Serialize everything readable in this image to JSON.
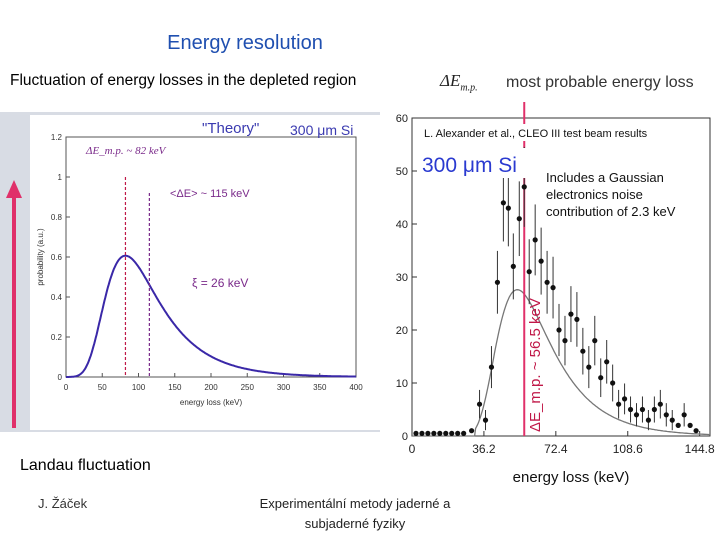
{
  "slide": {
    "title": "Energy resolution",
    "subtitle": "Fluctuation of energy losses in the depleted region",
    "header_symbol": "ΔE",
    "header_symbol_sub": "m.p.",
    "header_desc": "most probable energy loss",
    "landau_label": "Landau fluctuation",
    "author": "J. Žáček",
    "footer_center_line1": "Experimentální metody jaderné a",
    "footer_center_line2": "subjaderné fyziky",
    "accent_color": "#1f4fb0",
    "arrow_color": "#e0306a"
  },
  "chart_data": [
    {
      "type": "line",
      "title": "\"Theory\"",
      "title_suffix": "300 μm Si",
      "xlabel": "energy loss (keV)",
      "ylabel": "probability (a.u.)",
      "xlim": [
        0,
        400
      ],
      "ylim": [
        0,
        1.2
      ],
      "xticks": [
        0,
        50,
        100,
        150,
        200,
        250,
        300,
        350,
        400
      ],
      "yticks": [
        0,
        0.2,
        0.4,
        0.6,
        0.8,
        1,
        1.2
      ],
      "curve": "landau",
      "peak_x": 82,
      "mean_x": 115,
      "xi": 26,
      "annotations": {
        "mp": "ΔE_m.p. ~ 82 keV",
        "mean": "<ΔE> ~ 115 keV",
        "xi": "ξ = 26 keV"
      },
      "colors": {
        "curve": "#3a28a8",
        "mp_line": "#c01848",
        "mean_line": "#7a2a8a",
        "title": "#3a3ab0",
        "text": "#7a2a8a"
      }
    },
    {
      "type": "scatter",
      "title": "L. Alexander et al., CLEO III test beam results",
      "label_big": "300 μm Si",
      "note": [
        "Includes a Gaussian",
        "electronics noise",
        "contribution of 2.3 keV"
      ],
      "vline_label": "ΔE_m.p. ~ 56.5 keV",
      "vline_x": 56.5,
      "xlabel": "energy loss (keV)",
      "xlim": [
        0,
        150
      ],
      "ylim": [
        0,
        60
      ],
      "xticks": [
        0,
        36.2,
        72.4,
        108.6,
        144.8
      ],
      "yticks": [
        0,
        10,
        20,
        30,
        40,
        50,
        60
      ],
      "points": [
        [
          2,
          0.5
        ],
        [
          5,
          0.5
        ],
        [
          8,
          0.5
        ],
        [
          11,
          0.5
        ],
        [
          14,
          0.5
        ],
        [
          17,
          0.5
        ],
        [
          20,
          0.5
        ],
        [
          23,
          0.5
        ],
        [
          26,
          0.5
        ],
        [
          30,
          1
        ],
        [
          34,
          6
        ],
        [
          37,
          3
        ],
        [
          40,
          13
        ],
        [
          43,
          29
        ],
        [
          46,
          44
        ],
        [
          48.5,
          43
        ],
        [
          51,
          32
        ],
        [
          54,
          41
        ],
        [
          56.5,
          47
        ],
        [
          59,
          31
        ],
        [
          62,
          37
        ],
        [
          65,
          33
        ],
        [
          68,
          29
        ],
        [
          71,
          28
        ],
        [
          74,
          20
        ],
        [
          77,
          18
        ],
        [
          80,
          23
        ],
        [
          83,
          22
        ],
        [
          86,
          16
        ],
        [
          89,
          13
        ],
        [
          92,
          18
        ],
        [
          95,
          11
        ],
        [
          98,
          14
        ],
        [
          101,
          10
        ],
        [
          104,
          6
        ],
        [
          107,
          7
        ],
        [
          110,
          5
        ],
        [
          113,
          4
        ],
        [
          116,
          5
        ],
        [
          119,
          3
        ],
        [
          122,
          5
        ],
        [
          125,
          6
        ],
        [
          128,
          4
        ],
        [
          131,
          3
        ],
        [
          134,
          2
        ],
        [
          137,
          4
        ],
        [
          140,
          2
        ],
        [
          143,
          1
        ]
      ],
      "fit": "landau_gauss",
      "colors": {
        "points": "#111111",
        "fit": "#777777",
        "vline": "#e0306a",
        "label_big": "#2a3ad0",
        "vline_label": "#c01848"
      }
    }
  ]
}
